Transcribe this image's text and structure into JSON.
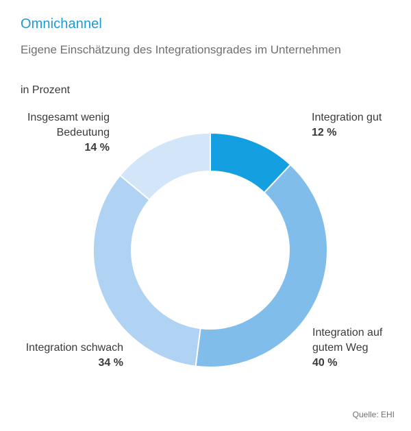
{
  "title": "Omnichannel",
  "subtitle": "Eigene Einschätzung des Integrationsgrades im Unternehmen",
  "unit_label": "in Prozent",
  "source": "Quelle: EHI",
  "chart_data": {
    "type": "pie",
    "title": "Omnichannel",
    "subtitle": "Eigene Einschätzung des Integrationsgrades im Unternehmen",
    "unit": "in Prozent",
    "donut": true,
    "slices": [
      {
        "label": "Integration gut",
        "value": 12,
        "display": "12 %",
        "color": "#139fe0"
      },
      {
        "label": "Integration auf gutem Weg",
        "value": 40,
        "display": "40 %",
        "color": "#80bdea"
      },
      {
        "label": "Integration schwach",
        "value": 34,
        "display": "34 %",
        "color": "#b0d2f3"
      },
      {
        "label": "Insgesamt wenig Bedeutung",
        "value": 14,
        "display": "14 %",
        "color": "#d2e5f9"
      }
    ]
  }
}
